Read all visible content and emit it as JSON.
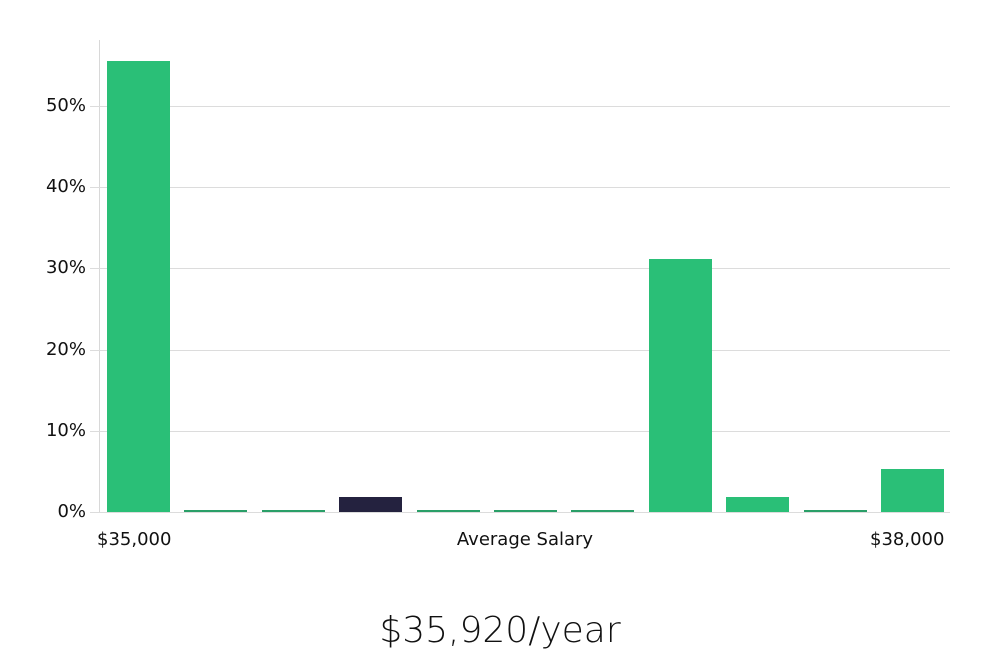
{
  "chart_data": {
    "type": "bar",
    "title": "",
    "xlabel": "Average Salary",
    "ylabel": "",
    "x_range_labels": {
      "min": "$35,000",
      "max": "$38,000"
    },
    "categories": [
      "bin1",
      "bin2",
      "bin3",
      "bin4",
      "bin5",
      "bin6",
      "bin7",
      "bin8",
      "bin9",
      "bin10",
      "bin11"
    ],
    "values": [
      55.5,
      0,
      0,
      1.8,
      0,
      0,
      0,
      31.2,
      1.8,
      0,
      5.3
    ],
    "highlight_index": 3,
    "ylim": [
      0,
      58
    ],
    "yticks": [
      "0%",
      "10%",
      "20%",
      "30%",
      "40%",
      "50%"
    ],
    "grid": true,
    "colors": {
      "bar": "#2abf77",
      "highlight": "#24223f"
    }
  },
  "axis": {
    "x_min_label": "$35,000",
    "x_center_label": "Average Salary",
    "x_max_label": "$38,000"
  },
  "summary": {
    "salary": "$35,920/year"
  }
}
